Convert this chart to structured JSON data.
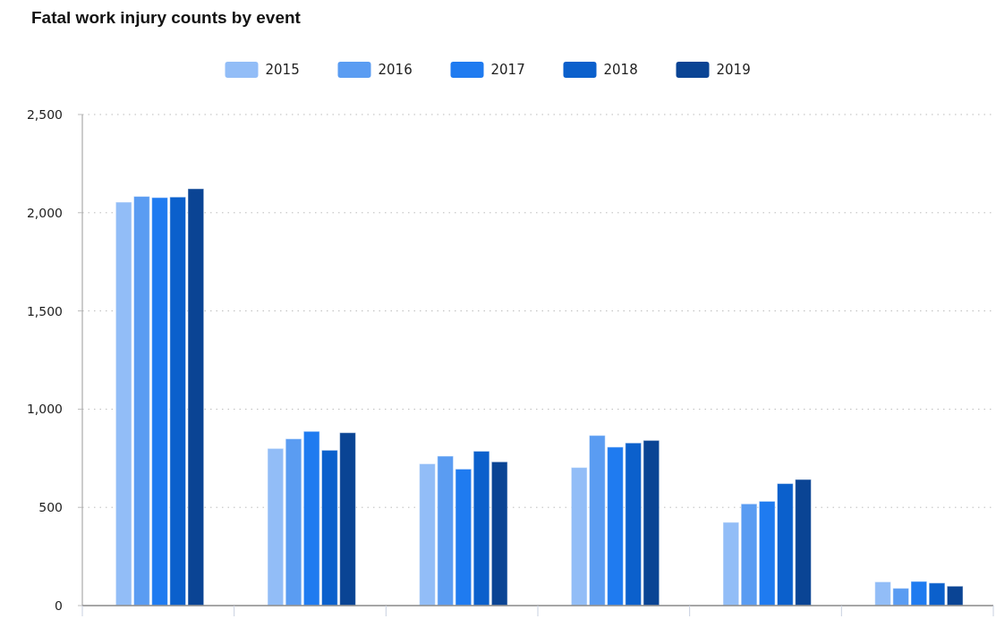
{
  "chart_data": {
    "type": "bar",
    "title": "Fatal work injury counts by event",
    "categories": [
      null,
      null,
      null,
      null,
      null,
      null
    ],
    "series": [
      {
        "name": "2015",
        "color": "#92bdf7",
        "values": [
          2054,
          800,
          722,
          703,
          424,
          121
        ]
      },
      {
        "name": "2016",
        "color": "#5a9cf2",
        "values": [
          2083,
          849,
          761,
          866,
          518,
          88
        ]
      },
      {
        "name": "2017",
        "color": "#1f7bf0",
        "values": [
          2077,
          887,
          695,
          807,
          531,
          123
        ]
      },
      {
        "name": "2018",
        "color": "#0b60cc",
        "values": [
          2080,
          791,
          786,
          828,
          621,
          115
        ]
      },
      {
        "name": "2019",
        "color": "#0a4494",
        "values": [
          2122,
          880,
          732,
          841,
          642,
          99
        ]
      }
    ],
    "ylim": [
      0,
      2500
    ],
    "yticks": [
      0,
      {
        "value": 500,
        "label": "500"
      },
      {
        "value": 1000,
        "label": "1,000"
      },
      {
        "value": 1500,
        "label": "1,500"
      },
      {
        "value": 2000,
        "label": "2,000"
      },
      {
        "value": 2500,
        "label": "2,500"
      }
    ],
    "grid": "y",
    "legend": "top"
  }
}
